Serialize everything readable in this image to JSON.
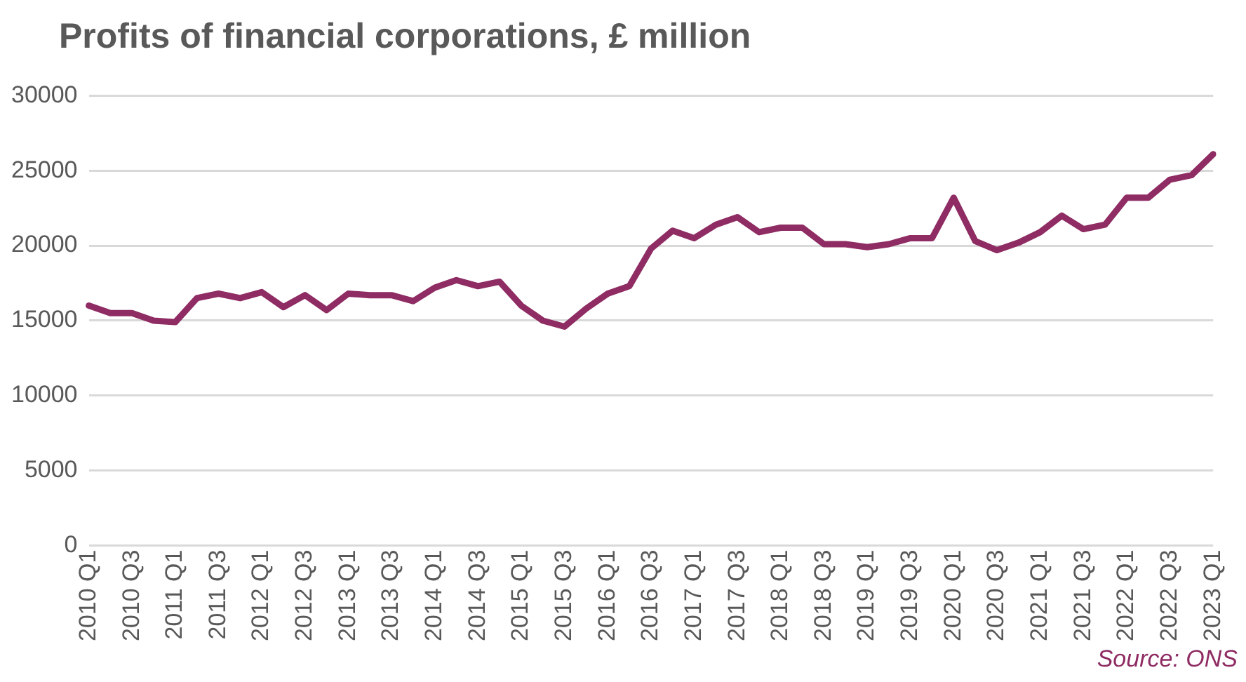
{
  "chart_data": {
    "type": "line",
    "title": "Profits of financial corporations, £ million",
    "categories": [
      "2010 Q1",
      null,
      "2010 Q3",
      null,
      "2011 Q1",
      null,
      "2011 Q3",
      null,
      "2012 Q1",
      null,
      "2012 Q3",
      null,
      "2013 Q1",
      null,
      "2013 Q3",
      null,
      "2014 Q1",
      null,
      "2014 Q3",
      null,
      "2015 Q1",
      null,
      "2015 Q3",
      null,
      "2016 Q1",
      null,
      "2016 Q3",
      null,
      "2017 Q1",
      null,
      "2017 Q3",
      null,
      "2018 Q1",
      null,
      "2018 Q3",
      null,
      "2019 Q1",
      null,
      "2019 Q3",
      null,
      "2020 Q1",
      null,
      "2020 Q3",
      null,
      "2021 Q1",
      null,
      "2021 Q3",
      null,
      "2022 Q1",
      null,
      "2022 Q3",
      null,
      "2023 Q1"
    ],
    "series": [
      {
        "color": "#8e2c63",
        "values": [
          16000,
          15500,
          15500,
          15000,
          14900,
          16500,
          16800,
          16500,
          16900,
          15900,
          16700,
          15700,
          16800,
          16700,
          16700,
          16300,
          17200,
          17700,
          17300,
          17600,
          16000,
          15000,
          14600,
          15800,
          16800,
          17300,
          19800,
          21000,
          20500,
          21400,
          21900,
          20900,
          21200,
          21200,
          20100,
          20100,
          19900,
          20100,
          20500,
          20500,
          23200,
          20300,
          19700,
          20200,
          20900,
          22000,
          21100,
          21400,
          23200,
          23200,
          24400,
          24700,
          26100
        ]
      }
    ],
    "ylim": [
      0,
      30000
    ],
    "yticks": [
      0,
      5000,
      10000,
      15000,
      20000,
      25000,
      30000
    ],
    "grid": "y",
    "legend": false,
    "marker": "none",
    "line_style": "solid",
    "annotations": [
      "Source: ONS"
    ]
  }
}
